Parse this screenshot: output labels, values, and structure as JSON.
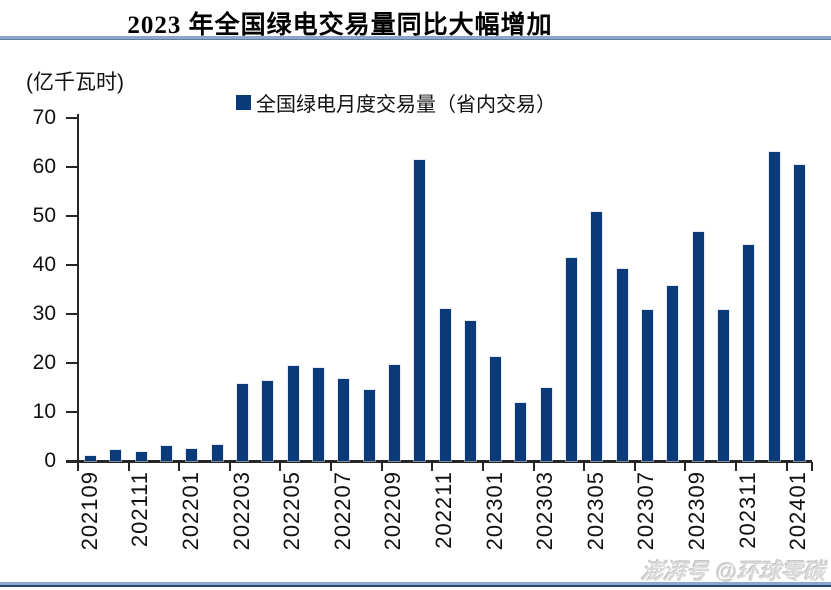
{
  "page": {
    "title": "2023 年全国绿电交易量同比大幅增加",
    "unit_label": "(亿千瓦时)",
    "watermark_logo": "澎湃号",
    "watermark_handle": "@环球零碳"
  },
  "legend": {
    "label": "全国绿电月度交易量（省内交易）"
  },
  "colors": {
    "bar": "#0b3a7b",
    "axis": "#262626",
    "rule_light": "#8ca7c9",
    "rule_dark": "#27486f",
    "watermark": "#d9d9d9"
  },
  "chart_data": {
    "type": "bar",
    "title": "2023 年全国绿电交易量同比大幅增加",
    "ylabel": "(亿千瓦时)",
    "legend_entries": [
      "全国绿电月度交易量（省内交易）"
    ],
    "legend_position": "top",
    "grid": false,
    "bar_color": "#0b3a7b",
    "categories": [
      "202109",
      "202110",
      "202111",
      "202112",
      "202201",
      "202202",
      "202203",
      "202204",
      "202205",
      "202206",
      "202207",
      "202208",
      "202209",
      "202210",
      "202211",
      "202212",
      "202301",
      "202302",
      "202303",
      "202304",
      "202305",
      "202306",
      "202307",
      "202308",
      "202309",
      "202310",
      "202311",
      "202312",
      "202401"
    ],
    "values": [
      1.0,
      2.3,
      1.8,
      3.0,
      2.4,
      3.3,
      15.7,
      16.3,
      19.4,
      18.9,
      16.8,
      14.5,
      19.5,
      61.5,
      31.0,
      28.5,
      21.2,
      11.8,
      14.8,
      41.5,
      50.8,
      39.2,
      30.8,
      35.8,
      46.8,
      30.8,
      44.1,
      63.0,
      60.4
    ],
    "ylim": [
      0,
      70
    ],
    "yticks": [
      0,
      10,
      20,
      30,
      40,
      50,
      60,
      70
    ],
    "xtick_label_every": 2,
    "xtick_labels": [
      "202109",
      "202111",
      "202201",
      "202203",
      "202205",
      "202207",
      "202209",
      "202211",
      "202301",
      "202303",
      "202305",
      "202307",
      "202309",
      "202311",
      "202401"
    ]
  }
}
